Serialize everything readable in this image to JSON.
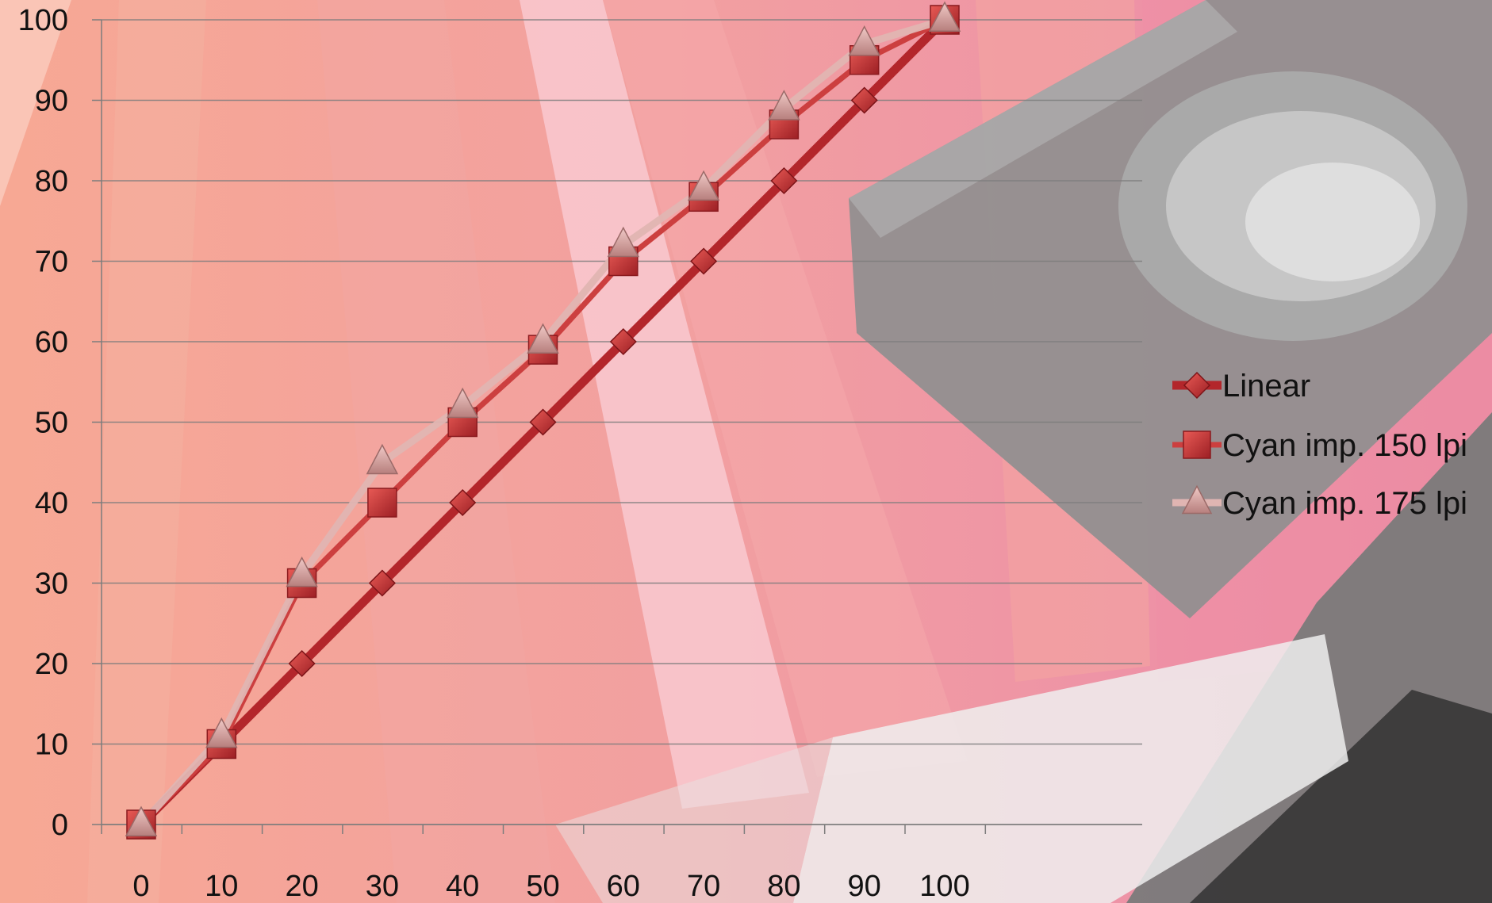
{
  "chart_data": {
    "type": "line",
    "x": [
      0,
      10,
      20,
      30,
      40,
      50,
      60,
      70,
      80,
      90,
      100
    ],
    "xlim": [
      0,
      100
    ],
    "ylim": [
      0,
      100
    ],
    "x_ticks": [
      "0",
      "10",
      "20",
      "30",
      "40",
      "50",
      "60",
      "70",
      "80",
      "90",
      "100"
    ],
    "y_ticks": [
      "0",
      "10",
      "20",
      "30",
      "40",
      "50",
      "60",
      "70",
      "80",
      "90",
      "100"
    ],
    "grid": "horizontal",
    "legend_position": "right",
    "series": [
      {
        "name": "Linear",
        "marker": "diamond",
        "color": "#b3262b",
        "values": [
          0,
          10,
          20,
          30,
          40,
          50,
          60,
          70,
          80,
          90,
          100
        ]
      },
      {
        "name": "Cyan imp. 150 lpi",
        "marker": "square",
        "color": "#c9393b",
        "values": [
          0,
          10,
          30,
          40,
          50,
          59,
          70,
          78,
          87,
          95,
          100
        ]
      },
      {
        "name": "Cyan imp. 175 lpi",
        "marker": "triangle",
        "color": "#d9a3a0",
        "values": [
          0,
          11,
          31,
          45,
          52,
          60,
          72,
          79,
          89,
          97,
          100
        ]
      }
    ]
  }
}
